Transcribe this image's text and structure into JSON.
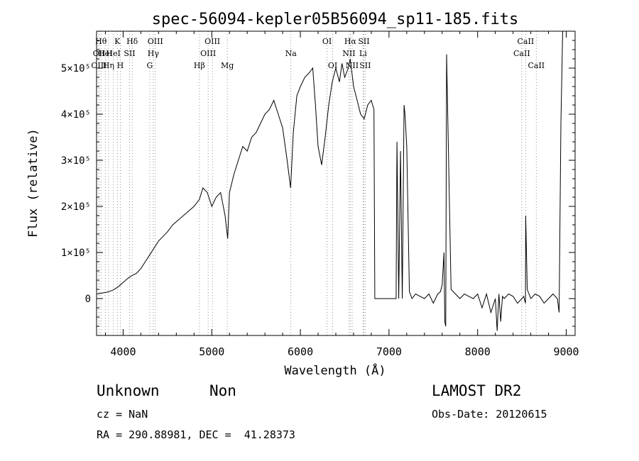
{
  "chart_data": {
    "type": "line",
    "title": "spec-56094-kepler05B56094_sp11-185.fits",
    "xlabel": "Wavelength (Å)",
    "ylabel": "Flux (relative)",
    "xlim": [
      3700,
      9100
    ],
    "ylim": [
      -80000,
      580000
    ],
    "xticks": [
      4000,
      5000,
      6000,
      7000,
      8000,
      9000
    ],
    "yticks": [
      {
        "value": 0,
        "label": "0"
      },
      {
        "value": 100000,
        "label": "1×10⁵"
      },
      {
        "value": 200000,
        "label": "2×10⁵"
      },
      {
        "value": 300000,
        "label": "3×10⁵"
      },
      {
        "value": 400000,
        "label": "4×10⁵"
      },
      {
        "value": 500000,
        "label": "5×10⁵"
      }
    ],
    "grid": false,
    "series": [
      {
        "x": [
          3700,
          3760,
          3820,
          3880,
          3940,
          4000,
          4060,
          4100,
          4150,
          4200,
          4250,
          4300,
          4350,
          4400,
          4450,
          4500,
          4560,
          4620,
          4680,
          4740,
          4800,
          4860,
          4900,
          4950,
          5000,
          5050,
          5100,
          5150,
          5180,
          5200,
          5250,
          5300,
          5350,
          5400,
          5450,
          5500,
          5550,
          5600,
          5650,
          5700,
          5750,
          5800,
          5850,
          5890,
          5920,
          5960,
          6000,
          6050,
          6100,
          6140,
          6170,
          6200,
          6240,
          6280,
          6320,
          6360,
          6400,
          6440,
          6470,
          6500,
          6540,
          6563,
          6600,
          6640,
          6680,
          6720,
          6760,
          6800,
          6830,
          6840,
          6860,
          6880,
          6920,
          6960,
          7000,
          7040,
          7080,
          7090,
          7110,
          7130,
          7150,
          7170,
          7180,
          7200,
          7230,
          7260,
          7300,
          7350,
          7400,
          7450,
          7500,
          7550,
          7580,
          7600,
          7620,
          7630,
          7640,
          7650,
          7700,
          7750,
          7800,
          7850,
          7900,
          7950,
          8000,
          8050,
          8100,
          8150,
          8200,
          8220,
          8240,
          8260,
          8280,
          8300,
          8350,
          8400,
          8450,
          8500,
          8520,
          8540,
          8542,
          8560,
          8600,
          8650,
          8700,
          8750,
          8800,
          8850,
          8900,
          8920,
          8940,
          8960,
          8980,
          9000
        ],
        "y": [
          10000,
          12000,
          14000,
          18000,
          25000,
          35000,
          45000,
          50000,
          55000,
          65000,
          80000,
          95000,
          110000,
          125000,
          135000,
          145000,
          160000,
          170000,
          180000,
          190000,
          200000,
          215000,
          240000,
          230000,
          200000,
          220000,
          230000,
          180000,
          130000,
          230000,
          270000,
          300000,
          330000,
          320000,
          350000,
          360000,
          380000,
          400000,
          410000,
          430000,
          400000,
          370000,
          300000,
          240000,
          360000,
          440000,
          460000,
          480000,
          490000,
          500000,
          420000,
          330000,
          290000,
          350000,
          420000,
          470000,
          500000,
          470000,
          510000,
          480000,
          500000,
          520000,
          460000,
          430000,
          400000,
          390000,
          420000,
          430000,
          410000,
          0,
          0,
          0,
          0,
          0,
          0,
          0,
          0,
          340000,
          0,
          320000,
          0,
          420000,
          400000,
          330000,
          15000,
          0,
          10000,
          5000,
          0,
          10000,
          -10000,
          10000,
          15000,
          30000,
          100000,
          -50000,
          -60000,
          530000,
          20000,
          10000,
          0,
          10000,
          5000,
          0,
          10000,
          -20000,
          10000,
          -30000,
          0,
          -70000,
          10000,
          -50000,
          5000,
          0,
          10000,
          5000,
          -10000,
          0,
          5000,
          -10000,
          180000,
          20000,
          0,
          10000,
          5000,
          -10000,
          0,
          10000,
          0,
          -30000,
          380000,
          580000,
          580000,
          580000
        ]
      }
    ],
    "lines": [
      {
        "wl": 3750,
        "label": "Hθ",
        "row": 1
      },
      {
        "wl": 3728,
        "label": "OII",
        "row": 2
      },
      {
        "wl": 3727,
        "label": "OIII",
        "row": 3
      },
      {
        "wl": 3798,
        "label": "HeI",
        "row": 2
      },
      {
        "wl": 3835,
        "label": "Hη",
        "row": 3
      },
      {
        "wl": 3934,
        "label": "K",
        "row": 1
      },
      {
        "wl": 3889,
        "label": "HeI",
        "row": 2
      },
      {
        "wl": 3968,
        "label": "H",
        "row": 3
      },
      {
        "wl": 4072,
        "label": "SII",
        "row": 2
      },
      {
        "wl": 4102,
        "label": "Hδ",
        "row": 1
      },
      {
        "wl": 4300,
        "label": "G",
        "row": 3
      },
      {
        "wl": 4340,
        "label": "Hγ",
        "row": 2
      },
      {
        "wl": 4363,
        "label": "OIII",
        "row": 1
      },
      {
        "wl": 4861,
        "label": "Hβ",
        "row": 3
      },
      {
        "wl": 4959,
        "label": "OIII",
        "row": 2
      },
      {
        "wl": 5007,
        "label": "OIII",
        "row": 1
      },
      {
        "wl": 5175,
        "label": "Mg",
        "row": 3
      },
      {
        "wl": 5893,
        "label": "Na",
        "row": 2
      },
      {
        "wl": 6300,
        "label": "OI",
        "row": 1
      },
      {
        "wl": 6364,
        "label": "OI",
        "row": 3
      },
      {
        "wl": 6548,
        "label": "NII",
        "row": 2
      },
      {
        "wl": 6563,
        "label": "Hα",
        "row": 1
      },
      {
        "wl": 6584,
        "label": "NII",
        "row": 3
      },
      {
        "wl": 6707,
        "label": "Li",
        "row": 2
      },
      {
        "wl": 6716,
        "label": "SII",
        "row": 1
      },
      {
        "wl": 6731,
        "label": "SII",
        "row": 3
      },
      {
        "wl": 8498,
        "label": "CaII",
        "row": 2
      },
      {
        "wl": 8542,
        "label": "CaII",
        "row": 1
      },
      {
        "wl": 8662,
        "label": "CaII",
        "row": 3
      }
    ]
  },
  "info": {
    "class": "Unknown",
    "subclass": "Non",
    "survey": "LAMOST DR2",
    "cz": "cz = NaN",
    "obsdate": "Obs-Date: 20120615",
    "coords": "RA = 290.88981, DEC =  41.28373"
  }
}
